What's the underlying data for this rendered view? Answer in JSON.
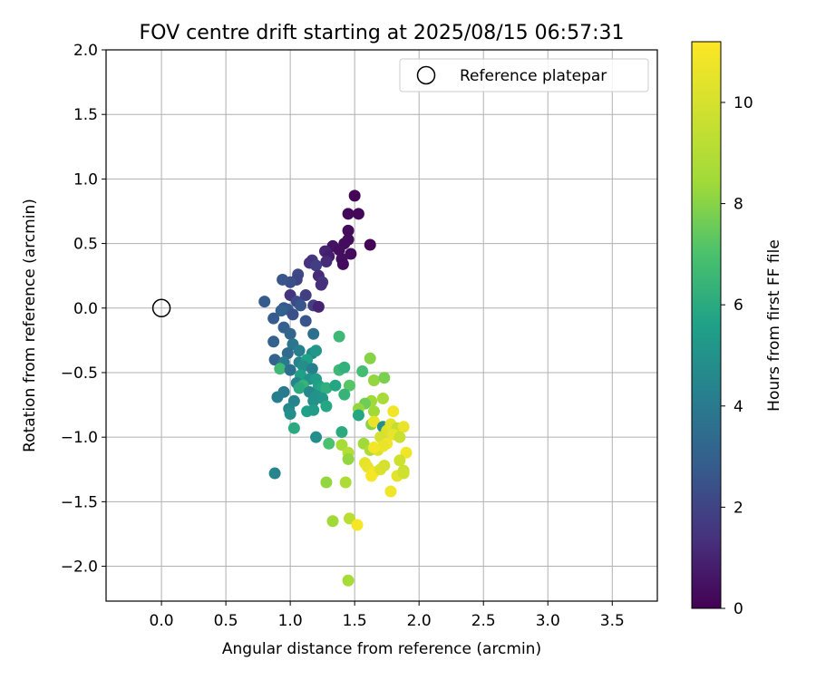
{
  "chart_data": {
    "type": "scatter",
    "title": "FOV centre drift starting at 2025/08/15 06:57:31",
    "xlabel": "Angular distance from reference (arcmin)",
    "ylabel": "Rotation from reference (arcmin)",
    "xlim": [
      -0.43,
      3.85
    ],
    "ylim": [
      -2.27,
      2.0
    ],
    "xticks": [
      0.0,
      0.5,
      1.0,
      1.5,
      2.0,
      2.5,
      3.0,
      3.5
    ],
    "xtick_labels": [
      "0.0",
      "0.5",
      "1.0",
      "1.5",
      "2.0",
      "2.5",
      "3.0",
      "3.5"
    ],
    "yticks": [
      2.0,
      1.5,
      1.0,
      0.5,
      0.0,
      -0.5,
      -1.0,
      -1.5,
      -2.0
    ],
    "ytick_labels": [
      "2.0",
      "1.5",
      "1.0",
      "0.5",
      "0.0",
      "−0.5",
      "−1.0",
      "−1.5",
      "−2.0"
    ],
    "grid": true,
    "legend": {
      "position": "top-right",
      "entries": [
        "Reference platepar"
      ]
    },
    "reference_point": {
      "x": 0.0,
      "y": 0.0,
      "label": "Reference platepar"
    },
    "colorbar": {
      "label": "Hours from first FF file",
      "range": [
        0,
        11.2
      ],
      "ticks": [
        0,
        2,
        4,
        6,
        8,
        10
      ],
      "tick_labels": [
        "0",
        "2",
        "4",
        "6",
        "8",
        "10"
      ],
      "colormap": "viridis"
    },
    "points": [
      {
        "x": 1.5,
        "y": 0.87,
        "c": 0.1
      },
      {
        "x": 1.45,
        "y": 0.73,
        "c": 0.2
      },
      {
        "x": 1.53,
        "y": 0.73,
        "c": 0.2
      },
      {
        "x": 1.45,
        "y": 0.6,
        "c": 0.3
      },
      {
        "x": 1.45,
        "y": 0.53,
        "c": 0.3
      },
      {
        "x": 1.42,
        "y": 0.5,
        "c": 0.3
      },
      {
        "x": 1.62,
        "y": 0.49,
        "c": 0.1
      },
      {
        "x": 1.33,
        "y": 0.48,
        "c": 0.5
      },
      {
        "x": 1.38,
        "y": 0.45,
        "c": 0.4
      },
      {
        "x": 1.47,
        "y": 0.42,
        "c": 0.3
      },
      {
        "x": 1.4,
        "y": 0.38,
        "c": 0.4
      },
      {
        "x": 1.41,
        "y": 0.34,
        "c": 0.3
      },
      {
        "x": 1.27,
        "y": 0.44,
        "c": 1.0
      },
      {
        "x": 1.3,
        "y": 0.4,
        "c": 0.8
      },
      {
        "x": 1.28,
        "y": 0.36,
        "c": 1.2
      },
      {
        "x": 1.17,
        "y": 0.37,
        "c": 1.6
      },
      {
        "x": 1.15,
        "y": 0.35,
        "c": 1.4
      },
      {
        "x": 1.2,
        "y": 0.33,
        "c": 1.8
      },
      {
        "x": 1.22,
        "y": 0.25,
        "c": 1.2
      },
      {
        "x": 1.25,
        "y": 0.2,
        "c": 1.6
      },
      {
        "x": 1.24,
        "y": 0.18,
        "c": 1.3
      },
      {
        "x": 1.06,
        "y": 0.26,
        "c": 2.2
      },
      {
        "x": 1.05,
        "y": 0.22,
        "c": 2.0
      },
      {
        "x": 1.0,
        "y": 0.2,
        "c": 2.4
      },
      {
        "x": 0.94,
        "y": 0.22,
        "c": 2.6
      },
      {
        "x": 1.12,
        "y": 0.1,
        "c": 1.8
      },
      {
        "x": 1.0,
        "y": 0.1,
        "c": 1.5
      },
      {
        "x": 0.8,
        "y": 0.05,
        "c": 2.8
      },
      {
        "x": 1.05,
        "y": 0.05,
        "c": 2.2
      },
      {
        "x": 1.08,
        "y": 0.02,
        "c": 2.6
      },
      {
        "x": 1.18,
        "y": 0.02,
        "c": 1.8
      },
      {
        "x": 1.22,
        "y": 0.01,
        "c": 1.0
      },
      {
        "x": 0.95,
        "y": 0.0,
        "c": 2.6
      },
      {
        "x": 0.98,
        "y": -0.01,
        "c": 2.8
      },
      {
        "x": 0.93,
        "y": -0.02,
        "c": 3.0
      },
      {
        "x": 1.02,
        "y": -0.05,
        "c": 2.4
      },
      {
        "x": 0.87,
        "y": -0.08,
        "c": 2.8
      },
      {
        "x": 1.12,
        "y": -0.1,
        "c": 2.6
      },
      {
        "x": 0.95,
        "y": -0.15,
        "c": 3.0
      },
      {
        "x": 1.0,
        "y": -0.2,
        "c": 3.2
      },
      {
        "x": 1.18,
        "y": -0.2,
        "c": 3.6
      },
      {
        "x": 0.87,
        "y": -0.26,
        "c": 3.0
      },
      {
        "x": 1.02,
        "y": -0.28,
        "c": 3.8
      },
      {
        "x": 1.07,
        "y": -0.33,
        "c": 4.2
      },
      {
        "x": 0.98,
        "y": -0.35,
        "c": 3.4
      },
      {
        "x": 1.17,
        "y": -0.35,
        "c": 4.6
      },
      {
        "x": 1.2,
        "y": -0.33,
        "c": 5.2
      },
      {
        "x": 0.88,
        "y": -0.4,
        "c": 3.0
      },
      {
        "x": 0.95,
        "y": -0.42,
        "c": 4.0
      },
      {
        "x": 1.07,
        "y": -0.42,
        "c": 4.4
      },
      {
        "x": 1.13,
        "y": -0.4,
        "c": 5.6
      },
      {
        "x": 1.1,
        "y": -0.45,
        "c": 4.8
      },
      {
        "x": 0.92,
        "y": -0.47,
        "c": 6.6
      },
      {
        "x": 1.0,
        "y": -0.48,
        "c": 3.6
      },
      {
        "x": 1.17,
        "y": -0.47,
        "c": 4.2
      },
      {
        "x": 1.08,
        "y": -0.52,
        "c": 5.6
      },
      {
        "x": 1.15,
        "y": -0.55,
        "c": 5.0
      },
      {
        "x": 1.2,
        "y": -0.55,
        "c": 5.4
      },
      {
        "x": 1.05,
        "y": -0.58,
        "c": 4.4
      },
      {
        "x": 1.1,
        "y": -0.6,
        "c": 6.4
      },
      {
        "x": 1.07,
        "y": -0.62,
        "c": 6.0
      },
      {
        "x": 1.22,
        "y": -0.6,
        "c": 5.6
      },
      {
        "x": 1.25,
        "y": -0.62,
        "c": 5.8
      },
      {
        "x": 1.28,
        "y": -0.62,
        "c": 6.2
      },
      {
        "x": 1.35,
        "y": -0.6,
        "c": 5.8
      },
      {
        "x": 1.15,
        "y": -0.65,
        "c": 4.6
      },
      {
        "x": 1.2,
        "y": -0.68,
        "c": 5.0
      },
      {
        "x": 1.25,
        "y": -0.7,
        "c": 5.2
      },
      {
        "x": 0.95,
        "y": -0.65,
        "c": 4.0
      },
      {
        "x": 0.9,
        "y": -0.69,
        "c": 4.2
      },
      {
        "x": 1.03,
        "y": -0.72,
        "c": 4.4
      },
      {
        "x": 1.18,
        "y": -0.72,
        "c": 5.0
      },
      {
        "x": 0.99,
        "y": -0.78,
        "c": 4.6
      },
      {
        "x": 1.0,
        "y": -0.82,
        "c": 4.8
      },
      {
        "x": 1.13,
        "y": -0.8,
        "c": 5.6
      },
      {
        "x": 1.18,
        "y": -0.79,
        "c": 5.4
      },
      {
        "x": 1.28,
        "y": -0.76,
        "c": 5.8
      },
      {
        "x": 1.03,
        "y": -0.93,
        "c": 6.0
      },
      {
        "x": 1.2,
        "y": -1.0,
        "c": 4.8
      },
      {
        "x": 0.88,
        "y": -1.28,
        "c": 4.4
      },
      {
        "x": 1.38,
        "y": -0.22,
        "c": 6.6
      },
      {
        "x": 1.38,
        "y": -0.48,
        "c": 6.6
      },
      {
        "x": 1.42,
        "y": -0.46,
        "c": 6.2
      },
      {
        "x": 1.46,
        "y": -0.6,
        "c": 7.2
      },
      {
        "x": 1.42,
        "y": -0.67,
        "c": 6.4
      },
      {
        "x": 1.56,
        "y": -0.49,
        "c": 6.8
      },
      {
        "x": 1.62,
        "y": -0.39,
        "c": 8.0
      },
      {
        "x": 1.65,
        "y": -0.56,
        "c": 8.2
      },
      {
        "x": 1.73,
        "y": -0.54,
        "c": 7.8
      },
      {
        "x": 1.63,
        "y": -0.72,
        "c": 8.4
      },
      {
        "x": 1.72,
        "y": -0.7,
        "c": 8.6
      },
      {
        "x": 1.58,
        "y": -0.74,
        "c": 7.6
      },
      {
        "x": 1.53,
        "y": -0.78,
        "c": 8.2
      },
      {
        "x": 1.53,
        "y": -0.83,
        "c": 5.8
      },
      {
        "x": 1.65,
        "y": -0.8,
        "c": 8.4
      },
      {
        "x": 1.63,
        "y": -0.9,
        "c": 8.0
      },
      {
        "x": 1.4,
        "y": -0.96,
        "c": 6.0
      },
      {
        "x": 1.3,
        "y": -1.05,
        "c": 7.0
      },
      {
        "x": 1.4,
        "y": -1.06,
        "c": 8.6
      },
      {
        "x": 1.45,
        "y": -1.12,
        "c": 9.0
      },
      {
        "x": 1.45,
        "y": -1.17,
        "c": 8.2
      },
      {
        "x": 1.57,
        "y": -1.05,
        "c": 8.4
      },
      {
        "x": 1.62,
        "y": -1.1,
        "c": 8.8
      },
      {
        "x": 1.28,
        "y": -1.35,
        "c": 8.2
      },
      {
        "x": 1.43,
        "y": -1.35,
        "c": 8.8
      },
      {
        "x": 1.33,
        "y": -1.65,
        "c": 8.4
      },
      {
        "x": 1.46,
        "y": -1.63,
        "c": 9.2
      },
      {
        "x": 1.45,
        "y": -2.11,
        "c": 8.6
      },
      {
        "x": 1.65,
        "y": -0.88,
        "c": 10.6
      },
      {
        "x": 1.72,
        "y": -0.92,
        "c": 4.8
      },
      {
        "x": 1.75,
        "y": -0.95,
        "c": 10.2
      },
      {
        "x": 1.8,
        "y": -0.8,
        "c": 10.8
      },
      {
        "x": 1.78,
        "y": -0.9,
        "c": 10.4
      },
      {
        "x": 1.83,
        "y": -0.93,
        "c": 9.4
      },
      {
        "x": 1.88,
        "y": -0.92,
        "c": 10.6
      },
      {
        "x": 1.7,
        "y": -1.0,
        "c": 10.0
      },
      {
        "x": 1.75,
        "y": -1.05,
        "c": 10.8
      },
      {
        "x": 1.8,
        "y": -0.98,
        "c": 10.6
      },
      {
        "x": 1.85,
        "y": -1.0,
        "c": 9.6
      },
      {
        "x": 1.68,
        "y": -1.1,
        "c": 10.2
      },
      {
        "x": 1.72,
        "y": -1.07,
        "c": 10.6
      },
      {
        "x": 1.65,
        "y": -1.08,
        "c": 10.9
      },
      {
        "x": 1.9,
        "y": -1.12,
        "c": 10.8
      },
      {
        "x": 1.58,
        "y": -1.2,
        "c": 10.4
      },
      {
        "x": 1.6,
        "y": -1.23,
        "c": 10.6
      },
      {
        "x": 1.65,
        "y": -1.27,
        "c": 10.8
      },
      {
        "x": 1.63,
        "y": -1.3,
        "c": 11.0
      },
      {
        "x": 1.7,
        "y": -1.25,
        "c": 10.2
      },
      {
        "x": 1.73,
        "y": -1.22,
        "c": 10.0
      },
      {
        "x": 1.85,
        "y": -1.18,
        "c": 9.8
      },
      {
        "x": 1.83,
        "y": -1.3,
        "c": 10.4
      },
      {
        "x": 1.88,
        "y": -1.26,
        "c": 9.6
      },
      {
        "x": 1.88,
        "y": -1.28,
        "c": 9.8
      },
      {
        "x": 1.78,
        "y": -1.42,
        "c": 10.8
      },
      {
        "x": 1.52,
        "y": -1.68,
        "c": 11.0
      }
    ]
  }
}
